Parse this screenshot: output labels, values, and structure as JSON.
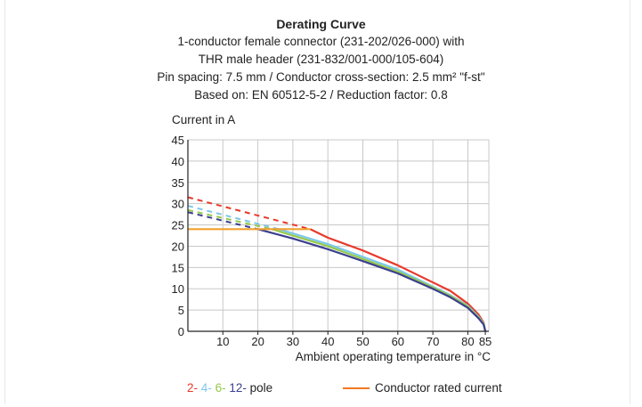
{
  "title": "Derating Curve",
  "subtitle_lines": [
    "1-conductor female connector (231-202/026-000) with",
    "THR male header (231-832/001-000/105-604)",
    "Pin spacing: 7.5 mm / Conductor cross-section: 2.5 mm² \"f-st\"",
    "Based on: EN 60512-5-2 / Reduction factor: 0.8"
  ],
  "chart_data": {
    "type": "line",
    "title": "Derating Curve",
    "ylabel": "Current in A",
    "xlabel": "Ambient operating temperature in °C",
    "xlim": [
      0,
      86
    ],
    "ylim": [
      0,
      45
    ],
    "x_ticks": [
      10,
      20,
      30,
      40,
      50,
      60,
      70,
      80,
      85
    ],
    "y_ticks": [
      0,
      5,
      10,
      15,
      20,
      25,
      30,
      35,
      40,
      45
    ],
    "grid": true,
    "series": [
      {
        "name": "2-pole",
        "color": "#e8392b",
        "dashed_x": [
          0,
          35
        ],
        "dashed_y": [
          31.5,
          24
        ],
        "x": [
          35,
          40,
          50,
          60,
          70,
          75,
          80,
          83,
          84.5,
          85
        ],
        "y": [
          24,
          22,
          19,
          15.5,
          11.5,
          9.5,
          6.5,
          4,
          2,
          0
        ]
      },
      {
        "name": "4-pole",
        "color": "#7cc8e8",
        "dashed_x": [
          0,
          26
        ],
        "dashed_y": [
          29.5,
          24
        ],
        "x": [
          26,
          30,
          40,
          50,
          60,
          70,
          75,
          80,
          83,
          84.5,
          85
        ],
        "y": [
          24,
          23,
          20.5,
          17.5,
          14.5,
          10.5,
          8.5,
          6,
          3.5,
          1.8,
          0
        ]
      },
      {
        "name": "6-pole",
        "color": "#96c84a",
        "dashed_x": [
          0,
          24
        ],
        "dashed_y": [
          28.5,
          24
        ],
        "x": [
          24,
          30,
          40,
          50,
          60,
          70,
          75,
          80,
          83,
          84.5,
          85
        ],
        "y": [
          24,
          22.5,
          20,
          17,
          14,
          10.3,
          8.3,
          5.8,
          3.3,
          1.7,
          0
        ]
      },
      {
        "name": "12-pole",
        "color": "#3b3f8f",
        "dashed_x": [
          0,
          20
        ],
        "dashed_y": [
          28,
          24
        ],
        "x": [
          20,
          30,
          40,
          50,
          60,
          70,
          75,
          80,
          83,
          84.5,
          85
        ],
        "y": [
          24,
          21.8,
          19.3,
          16.5,
          13.6,
          10,
          8,
          5.5,
          3.1,
          1.6,
          0
        ]
      },
      {
        "name": "Conductor rated current",
        "color": "#f0a030",
        "x": [
          0,
          35
        ],
        "y": [
          24,
          24
        ]
      }
    ]
  },
  "legend": {
    "pole_parts": [
      "2-",
      "4-",
      "6-",
      "12-",
      "pole"
    ],
    "pole_colors": [
      "#e8392b",
      "#7cc8e8",
      "#96c84a",
      "#3b3f8f",
      "#222222"
    ],
    "rated_label": "Conductor rated current",
    "rated_color": "#f07820"
  }
}
